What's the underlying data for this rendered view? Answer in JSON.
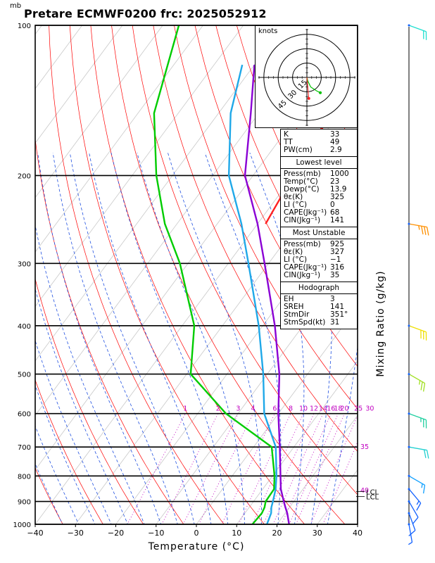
{
  "header": {
    "unit_label": "mb",
    "title": "Pretare ECMWF0200 frc: 2025052912"
  },
  "colors": {
    "isotherm": "#e8e8e8",
    "dry_adiabat": "#ff0000",
    "moist_adiabat": "#2050e0",
    "mixing_ratio": "#c000c0",
    "temperature": "#8a00d4",
    "dewpoint": "#00cc00",
    "wetbulb": "#1fa8e8",
    "parcel": "#ff2020",
    "isobar": "#000000"
  },
  "chart_data": {
    "type": "line",
    "xlabel": "Temperature (°C)",
    "y2label": "Mixing Ratio (g/kg)",
    "xlim": [
      -40,
      40
    ],
    "ylim": [
      1000,
      100
    ],
    "yscale": "log",
    "x_ticks": [
      -40,
      -30,
      -20,
      -10,
      0,
      10,
      20,
      30,
      40
    ],
    "pressure_ticks": [
      100,
      200,
      300,
      400,
      500,
      600,
      700,
      800,
      900,
      1000
    ],
    "mixing_ratio_labels": [
      "1",
      "2",
      "3",
      "4",
      "6",
      "8",
      "10",
      "12",
      "14",
      "16",
      "18",
      "20",
      "25",
      "30"
    ],
    "mixing_ratio_values": [
      1,
      2,
      3,
      4,
      6,
      8,
      10,
      12,
      14,
      16,
      18,
      20,
      25,
      30
    ],
    "isotherm_labels": [
      "35",
      "40"
    ],
    "lcl_labels": [
      "LCL",
      "LCL"
    ],
    "lcl_pressures": [
      860,
      880
    ],
    "series": [
      {
        "name": "temperature",
        "points": [
          [
            1000,
            23
          ],
          [
            950,
            20.5
          ],
          [
            925,
            19
          ],
          [
            900,
            17.5
          ],
          [
            850,
            14.5
          ],
          [
            800,
            12
          ],
          [
            700,
            6.5
          ],
          [
            600,
            0
          ],
          [
            500,
            -7
          ],
          [
            400,
            -17
          ],
          [
            300,
            -31
          ],
          [
            250,
            -40
          ],
          [
            200,
            -52
          ],
          [
            150,
            -62
          ],
          [
            120,
            -70
          ]
        ]
      },
      {
        "name": "dewpoint",
        "points": [
          [
            1000,
            13.9
          ],
          [
            950,
            14.2
          ],
          [
            925,
            13.8
          ],
          [
            900,
            13
          ],
          [
            850,
            12.8
          ],
          [
            800,
            10.5
          ],
          [
            700,
            4.5
          ],
          [
            600,
            -13
          ],
          [
            500,
            -29
          ],
          [
            400,
            -37
          ],
          [
            300,
            -52
          ],
          [
            250,
            -63
          ],
          [
            200,
            -74
          ],
          [
            150,
            -86
          ],
          [
            100,
            -96
          ]
        ]
      },
      {
        "name": "wetbulb",
        "points": [
          [
            1000,
            17.5
          ],
          [
            950,
            16.5
          ],
          [
            925,
            15.5
          ],
          [
            900,
            14.8
          ],
          [
            850,
            13.2
          ],
          [
            800,
            11
          ],
          [
            700,
            5.5
          ],
          [
            600,
            -3.5
          ],
          [
            500,
            -11
          ],
          [
            400,
            -21
          ],
          [
            300,
            -35
          ],
          [
            250,
            -44
          ],
          [
            200,
            -56
          ],
          [
            150,
            -67
          ],
          [
            120,
            -73
          ]
        ]
      },
      {
        "name": "parcel",
        "points": [
          [
            250,
            -38
          ],
          [
            200,
            -40
          ],
          [
            150,
            -42
          ],
          [
            120,
            -44
          ],
          [
            100,
            -45
          ]
        ]
      }
    ]
  },
  "hodograph": {
    "unit": "knots",
    "ring_labels": [
      "15",
      "30",
      "45"
    ],
    "ring_values": [
      15,
      30,
      45
    ],
    "max_speed": 50,
    "u_v_points": [
      [
        0,
        0
      ],
      [
        1,
        -4
      ],
      [
        4,
        -10
      ],
      [
        10,
        -14
      ],
      [
        14,
        -16
      ]
    ],
    "storm_motion": [
      2,
      -22
    ]
  },
  "indices": {
    "top": [
      {
        "label": "K",
        "value": "33"
      },
      {
        "label": "TT",
        "value": "49"
      },
      {
        "label": "PW(cm)",
        "value": "2.9"
      }
    ],
    "lowest_title": "Lowest level",
    "lowest": [
      {
        "label": "Press(mb)",
        "value": "1000"
      },
      {
        "label": "Temp(°C)",
        "value": "23"
      },
      {
        "label": "Dewp(°C)",
        "value": "13.9"
      },
      {
        "label": "θε(K)",
        "value": "325"
      },
      {
        "label": "LI (°C)",
        "value": "0"
      },
      {
        "label": "CAPE(Jkg⁻¹)",
        "value": "68"
      },
      {
        "label": "CIN(Jkg⁻¹)",
        "value": "141"
      }
    ],
    "unstable_title": "Most Unstable",
    "unstable": [
      {
        "label": "Press(mb)",
        "value": "925"
      },
      {
        "label": "θε(K)",
        "value": "327"
      },
      {
        "label": "LI (°C)",
        "value": "−1"
      },
      {
        "label": "CAPE(Jkg⁻¹)",
        "value": "316"
      },
      {
        "label": "CIN(Jkg⁻¹)",
        "value": "35"
      }
    ],
    "hodo_title": "Hodograph",
    "hodo": [
      {
        "label": "EH",
        "value": "3"
      },
      {
        "label": "SREH",
        "value": "141"
      },
      {
        "label": "StmDir",
        "value": "351°"
      },
      {
        "label": "StmSpd(kt)",
        "value": "31"
      }
    ]
  },
  "wind_barbs": [
    {
      "pressure": 1000,
      "dir": 170,
      "speed": 5,
      "color": "#1060ff"
    },
    {
      "pressure": 950,
      "dir": 160,
      "speed": 10,
      "color": "#1060ff"
    },
    {
      "pressure": 900,
      "dir": 150,
      "speed": 10,
      "color": "#1060ff"
    },
    {
      "pressure": 850,
      "dir": 140,
      "speed": 15,
      "color": "#1060ff"
    },
    {
      "pressure": 800,
      "dir": 120,
      "speed": 15,
      "color": "#10a0ff"
    },
    {
      "pressure": 700,
      "dir": 100,
      "speed": 20,
      "color": "#20d0d0"
    },
    {
      "pressure": 600,
      "dir": 110,
      "speed": 25,
      "color": "#20d0a0"
    },
    {
      "pressure": 500,
      "dir": 120,
      "speed": 25,
      "color": "#a0e020"
    },
    {
      "pressure": 400,
      "dir": 110,
      "speed": 30,
      "color": "#f0e000"
    },
    {
      "pressure": 250,
      "dir": 100,
      "speed": 35,
      "color": "#ff9000"
    },
    {
      "pressure": 100,
      "dir": 110,
      "speed": 20,
      "color": "#20e0d0"
    }
  ]
}
